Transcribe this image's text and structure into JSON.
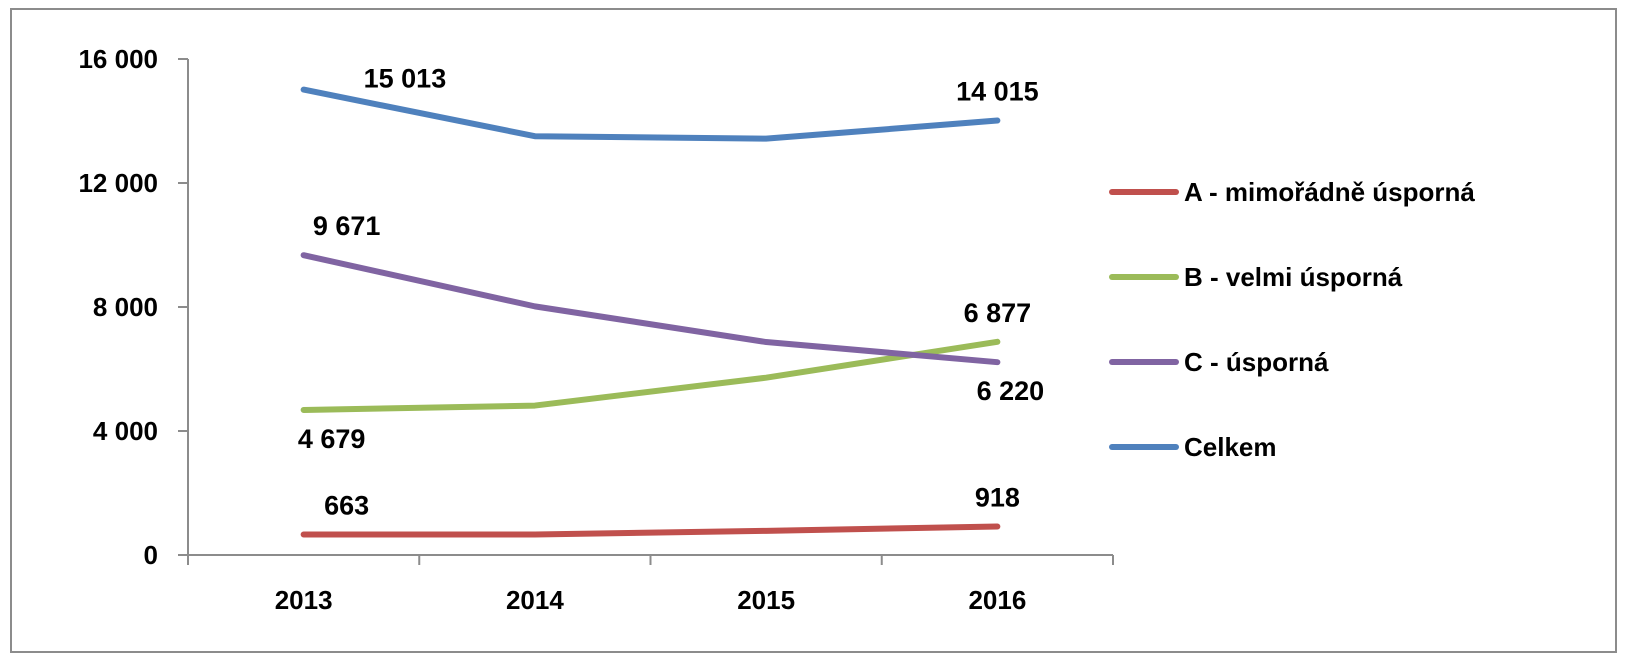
{
  "chart_data": {
    "type": "line",
    "title": "",
    "xlabel": "",
    "ylabel": "",
    "categories": [
      "2013",
      "2014",
      "2015",
      "2016"
    ],
    "ylim": [
      0,
      16000
    ],
    "yticks": [
      0,
      4000,
      8000,
      12000,
      16000
    ],
    "ytick_labels": [
      "0",
      "4 000",
      "8 000",
      "12 000",
      "16 000"
    ],
    "grid": false,
    "legend_position": "right",
    "series": [
      {
        "name": "A - mimořádně úsporná",
        "color": "#c0504d",
        "values": [
          663,
          660,
          780,
          918
        ],
        "labels": [
          {
            "index": 0,
            "text": "663",
            "pos": "above"
          },
          {
            "index": 3,
            "text": "918",
            "pos": "above"
          }
        ]
      },
      {
        "name": "B - velmi úsporná",
        "color": "#9bbb59",
        "values": [
          4679,
          4820,
          5720,
          6877
        ],
        "labels": [
          {
            "index": 0,
            "text": "4 679",
            "pos": "below"
          },
          {
            "index": 3,
            "text": "6 877",
            "pos": "above"
          }
        ]
      },
      {
        "name": "C - úsporná",
        "color": "#8064a2",
        "values": [
          9671,
          8020,
          6870,
          6220
        ],
        "labels": [
          {
            "index": 0,
            "text": "9 671",
            "pos": "above"
          },
          {
            "index": 3,
            "text": "6 220",
            "pos": "below"
          }
        ]
      },
      {
        "name": "Celkem",
        "color": "#4f81bd",
        "values": [
          15013,
          13510,
          13430,
          14015
        ],
        "labels": [
          {
            "index": 0,
            "text": "15 013",
            "pos": "above-right"
          },
          {
            "index": 3,
            "text": "14 015",
            "pos": "above"
          }
        ]
      }
    ]
  }
}
